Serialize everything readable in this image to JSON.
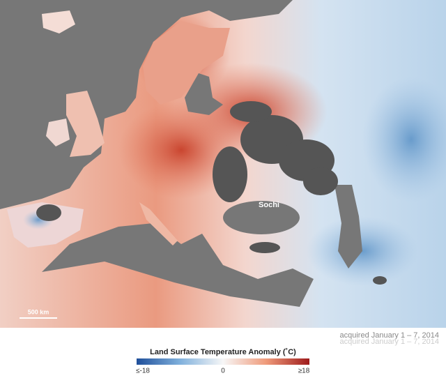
{
  "map": {
    "labels": {
      "city": "Sochi",
      "scale": "500 km"
    },
    "caption": "acquired January 1 – 7, 2014",
    "legend": {
      "title": "Land Surface Temperature Anomaly (˚C)",
      "min_label": "≤-18",
      "mid_label": "0",
      "max_label": "≥18"
    }
  }
}
